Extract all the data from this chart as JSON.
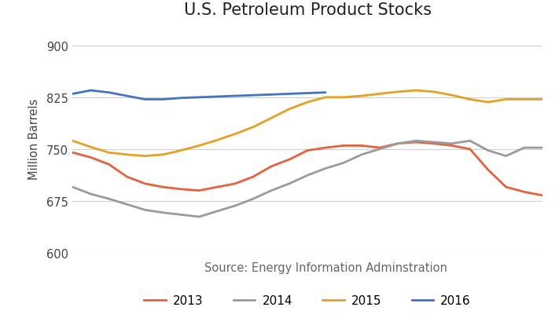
{
  "title": "U.S. Petroleum Product Stocks",
  "ylabel": "Million Barrels",
  "source_text": "Source: Energy Information Adminstration",
  "ylim": [
    600,
    930
  ],
  "yticks": [
    600,
    675,
    750,
    825,
    900
  ],
  "line_colors": {
    "2013": "#E8613C",
    "2014": "#9B9B9B",
    "2015": "#E8A020",
    "2016": "#4472C4"
  },
  "series": {
    "2013": [
      745,
      738,
      728,
      710,
      700,
      695,
      692,
      690,
      695,
      700,
      710,
      725,
      735,
      748,
      752,
      755,
      755,
      752,
      758,
      760,
      758,
      755,
      750,
      720,
      695,
      688,
      683
    ],
    "2014": [
      695,
      685,
      678,
      670,
      662,
      658,
      655,
      652,
      660,
      668,
      678,
      690,
      700,
      712,
      722,
      730,
      742,
      750,
      758,
      762,
      760,
      758,
      762,
      748,
      740,
      752,
      752
    ],
    "2015": [
      762,
      753,
      745,
      742,
      740,
      742,
      748,
      755,
      763,
      772,
      782,
      795,
      808,
      818,
      825,
      825,
      827,
      830,
      833,
      835,
      833,
      828,
      822,
      818,
      822,
      822,
      822
    ],
    "2016": [
      830,
      835,
      832,
      827,
      822,
      822,
      824,
      825,
      826,
      827,
      828,
      829,
      830,
      831,
      832,
      null,
      null,
      null,
      null,
      null,
      null,
      null,
      null,
      null,
      null,
      null,
      null
    ]
  },
  "legend_order": [
    "2013",
    "2014",
    "2015",
    "2016"
  ],
  "n_points": 27,
  "fig_width": 7.11,
  "fig_height": 4.06,
  "dpi": 100
}
